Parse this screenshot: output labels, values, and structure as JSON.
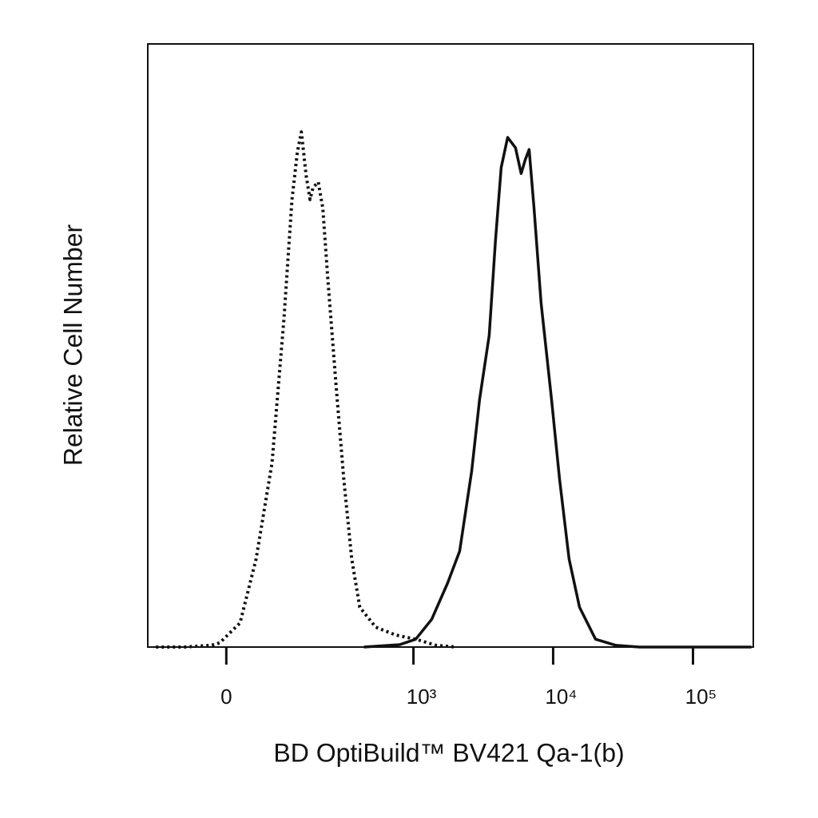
{
  "chart_data": {
    "type": "line",
    "xlabel": "BD OptiBuild™ BV421 Qa-1(b)",
    "ylabel": "Relative Cell Number",
    "xscale": "biexponential",
    "xlim": [
      -155,
      270000
    ],
    "ylim": [
      0,
      100
    ],
    "xticks": [
      0,
      {
        "value": 1000,
        "label": "10³"
      },
      {
        "value": 10000,
        "label": "10⁴"
      },
      {
        "value": 100000,
        "label": "10⁵"
      }
    ],
    "series": [
      {
        "color": "#111111",
        "style": "dotted",
        "x": [
          -132,
          -69,
          -22,
          -10,
          21,
          47,
          76,
          101,
          120,
          134,
          145,
          159,
          171,
          181,
          199,
          216,
          236,
          272,
          312,
          357,
          409,
          534,
          745,
          1038,
          1446,
          2007
        ],
        "values": [
          0,
          0,
          0.3,
          0.7,
          4,
          14.6,
          30.5,
          54.3,
          74.2,
          82.1,
          85.4,
          78.1,
          74.2,
          76.2,
          77.1,
          72.8,
          61,
          43.7,
          27.8,
          14.6,
          6.6,
          3.3,
          2,
          1.3,
          0.3,
          0
        ]
      },
      {
        "color": "#111111",
        "style": "solid",
        "x": [
          438,
          797,
          1038,
          1352,
          1757,
          2144,
          2613,
          2981,
          3487,
          3873,
          4250,
          4729,
          5382,
          5906,
          6311,
          6734,
          7296,
          8206,
          9734,
          11114,
          13009,
          15438,
          20093,
          27900,
          41400,
          261800
        ],
        "values": [
          0,
          0.4,
          1.3,
          4.6,
          10.6,
          15.9,
          29.1,
          41.1,
          51.7,
          67.5,
          79.5,
          84.5,
          82.8,
          78.5,
          80.8,
          82.5,
          72.8,
          57,
          41.1,
          27.8,
          14.6,
          6.6,
          1.3,
          0.3,
          0,
          0
        ]
      }
    ]
  }
}
